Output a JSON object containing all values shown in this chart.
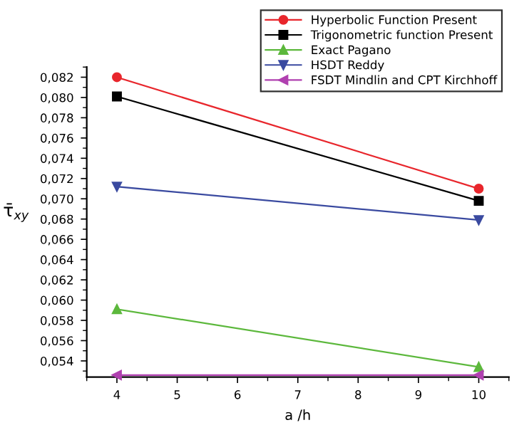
{
  "chart_data": {
    "type": "line",
    "xlabel": "a /h",
    "ylabel": "τ̄$_{xy}$",
    "x": [
      4,
      10
    ],
    "series": [
      {
        "name": "Hyperbolic Function Present",
        "color": "#e8262c",
        "values": [
          0.082,
          0.071
        ],
        "marker": "circle"
      },
      {
        "name": "Trigonometric function Present",
        "color": "#000000",
        "values": [
          0.0801,
          0.0698
        ],
        "marker": "square"
      },
      {
        "name": "Exact Pagano",
        "color": "#5cb83c",
        "values": [
          0.0591,
          0.0534
        ],
        "marker": "triangle"
      },
      {
        "name": "HSDT Reddy",
        "color": "#3a4aa0",
        "values": [
          0.0712,
          0.0679
        ],
        "marker": "triangle_down"
      },
      {
        "name": "FSDT Mindlin and CPT Kirchhoff",
        "color": "#b040b0",
        "values": [
          0.0526,
          0.0526
        ],
        "marker": "triangle_left"
      }
    ],
    "xlim": [
      3.5,
      10.5
    ],
    "xticks": [
      4,
      5,
      6,
      7,
      8,
      9,
      10
    ],
    "ylim": [
      0.0524,
      0.083
    ],
    "yticks": [
      {
        "value": 0.054,
        "label": "0,054"
      },
      {
        "value": 0.056,
        "label": "0,056"
      },
      {
        "value": 0.058,
        "label": "0,058"
      },
      {
        "value": 0.06,
        "label": "0,060"
      },
      {
        "value": 0.062,
        "label": "0,062"
      },
      {
        "value": 0.064,
        "label": "0,064"
      },
      {
        "value": 0.066,
        "label": "0,066"
      },
      {
        "value": 0.068,
        "label": "0,068"
      },
      {
        "value": 0.07,
        "label": "0,070"
      },
      {
        "value": 0.072,
        "label": "0,072"
      },
      {
        "value": 0.074,
        "label": "0,074"
      },
      {
        "value": 0.076,
        "label": "0,076"
      },
      {
        "value": 0.078,
        "label": "0,078"
      },
      {
        "value": 0.08,
        "label": "0,080"
      },
      {
        "value": 0.082,
        "label": "0,082"
      }
    ],
    "grid": false,
    "legend": "top right",
    "line_style": "solid"
  }
}
